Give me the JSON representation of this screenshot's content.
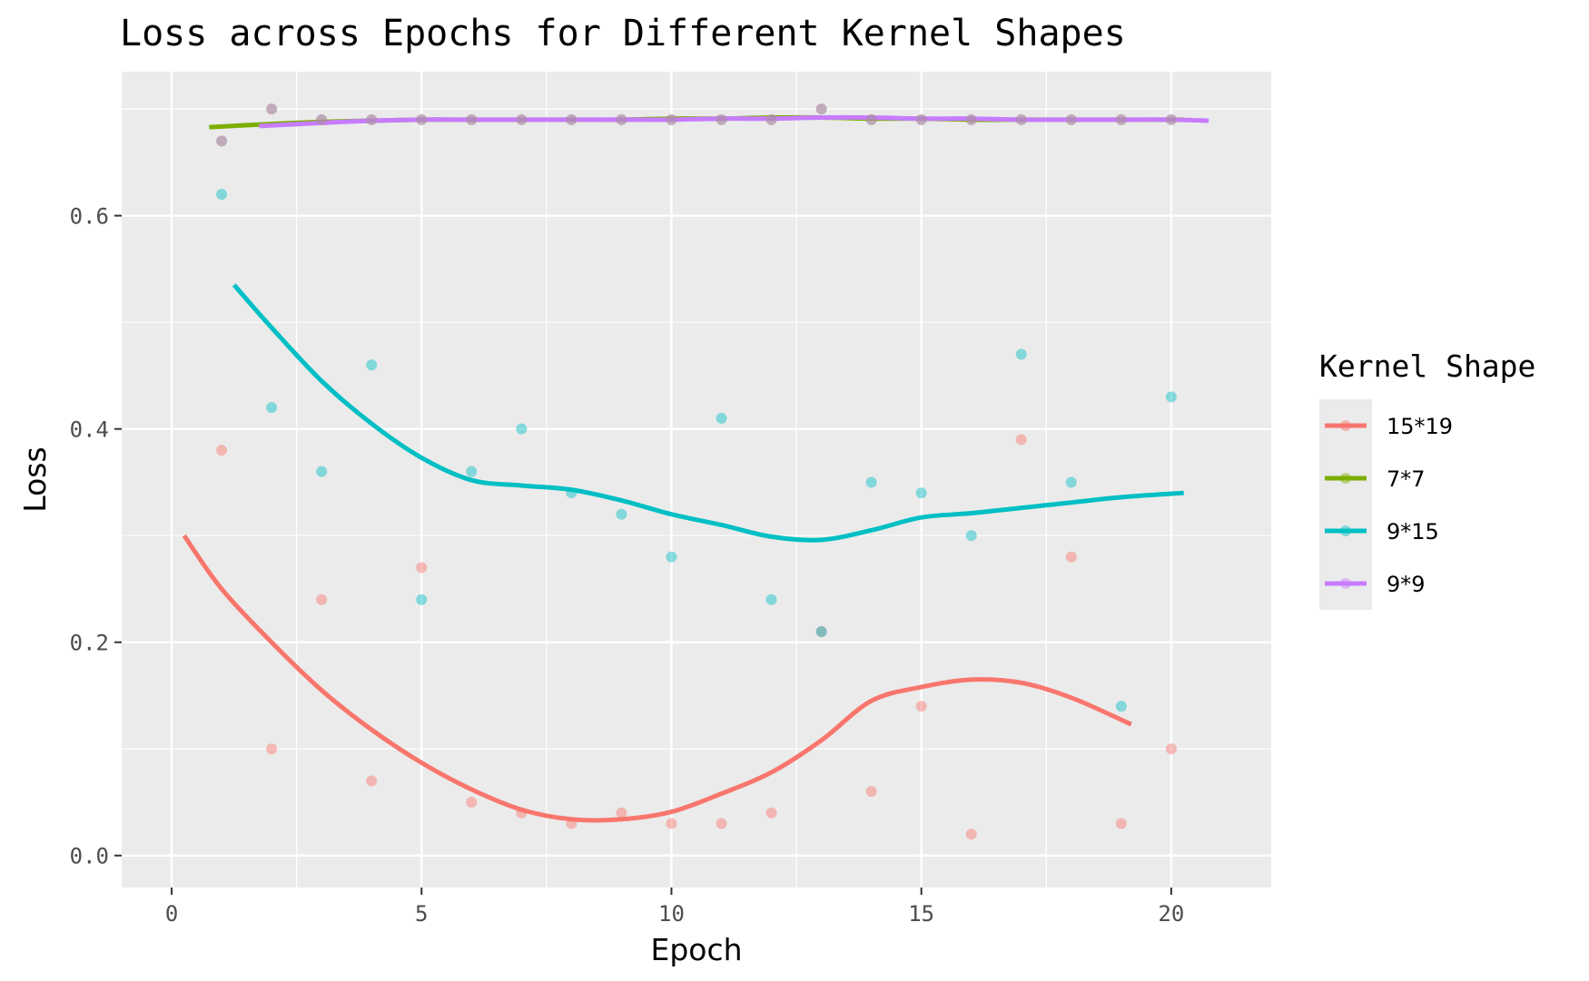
{
  "chart_data": {
    "type": "scatter",
    "title": "Loss across Epochs for Different Kernel Shapes",
    "xlabel": "Epoch",
    "ylabel": "Loss",
    "xlim": [
      -1,
      22
    ],
    "ylim": [
      -0.03,
      0.735
    ],
    "x_ticks": [
      0,
      5,
      10,
      15,
      20
    ],
    "x_tick_labels": [
      "0",
      "5",
      "10",
      "15",
      "20"
    ],
    "y_ticks": [
      0.0,
      0.2,
      0.4,
      0.6
    ],
    "y_tick_labels": [
      "0.0",
      "0.2",
      "0.4",
      "0.6"
    ],
    "grid": true,
    "legend": {
      "title": "Kernel Shape",
      "position": "right"
    },
    "series": [
      {
        "name": "15*19",
        "color": "#F8766D",
        "x": [
          1,
          2,
          3,
          4,
          5,
          6,
          7,
          8,
          9,
          10,
          11,
          12,
          13,
          14,
          15,
          16,
          17,
          18,
          19,
          20
        ],
        "points": [
          0.38,
          0.1,
          0.24,
          0.07,
          0.27,
          0.05,
          0.04,
          0.03,
          0.04,
          0.03,
          0.03,
          0.04,
          0.21,
          0.06,
          0.14,
          0.02,
          0.39,
          0.28,
          0.03,
          0.1
        ],
        "smooth_x": [
          0.25,
          1,
          2,
          3,
          4,
          5,
          6,
          7,
          8,
          9,
          10,
          11,
          12,
          13,
          14,
          15,
          16,
          17,
          18,
          19.2
        ],
        "smooth": [
          0.3,
          0.25,
          0.2,
          0.155,
          0.118,
          0.087,
          0.062,
          0.043,
          0.034,
          0.034,
          0.041,
          0.058,
          0.078,
          0.108,
          0.145,
          0.158,
          0.165,
          0.162,
          0.148,
          0.123
        ]
      },
      {
        "name": "7*7",
        "color": "#7CAE00",
        "x": [
          1,
          2,
          3,
          4,
          5,
          6,
          7,
          8,
          9,
          10,
          11,
          12,
          13,
          14,
          15,
          16,
          17,
          18,
          19,
          20
        ],
        "points": [
          0.67,
          0.7,
          0.69,
          0.69,
          0.69,
          0.69,
          0.69,
          0.69,
          0.69,
          0.69,
          0.69,
          0.69,
          0.7,
          0.69,
          0.69,
          0.69,
          0.69,
          0.69,
          0.69,
          0.69
        ],
        "smooth_x": [
          0.75,
          2,
          3,
          4,
          5,
          6,
          7,
          8,
          9,
          10,
          11,
          12,
          13,
          14,
          15,
          16,
          17,
          18,
          19,
          20.25
        ],
        "smooth": [
          0.683,
          0.686,
          0.688,
          0.689,
          0.69,
          0.69,
          0.69,
          0.69,
          0.69,
          0.691,
          0.691,
          0.692,
          0.692,
          0.691,
          0.691,
          0.69,
          0.69,
          0.69,
          0.69,
          0.69
        ]
      },
      {
        "name": "9*15",
        "color": "#00BFC4",
        "x": [
          1,
          2,
          3,
          4,
          5,
          6,
          7,
          8,
          9,
          10,
          11,
          12,
          13,
          14,
          15,
          16,
          17,
          18,
          19,
          20
        ],
        "points": [
          0.62,
          0.42,
          0.36,
          0.46,
          0.24,
          0.36,
          0.4,
          0.34,
          0.32,
          0.28,
          0.41,
          0.24,
          0.21,
          0.35,
          0.34,
          0.3,
          0.47,
          0.35,
          0.14,
          0.43
        ],
        "smooth_x": [
          1.25,
          2,
          3,
          4,
          5,
          6,
          7,
          8,
          9,
          10,
          11,
          12,
          13,
          14,
          15,
          16,
          17,
          18,
          19,
          20.25
        ],
        "smooth": [
          0.535,
          0.495,
          0.445,
          0.405,
          0.373,
          0.352,
          0.347,
          0.343,
          0.333,
          0.32,
          0.31,
          0.299,
          0.296,
          0.305,
          0.317,
          0.321,
          0.326,
          0.331,
          0.336,
          0.34
        ]
      },
      {
        "name": "9*9",
        "color": "#C77CFF",
        "x": [
          1,
          2,
          3,
          4,
          5,
          6,
          7,
          8,
          9,
          10,
          11,
          12,
          13,
          14,
          15,
          16,
          17,
          18,
          19,
          20
        ],
        "points": [
          0.67,
          0.7,
          0.69,
          0.69,
          0.69,
          0.69,
          0.69,
          0.69,
          0.69,
          0.69,
          0.69,
          0.69,
          0.7,
          0.69,
          0.69,
          0.69,
          0.69,
          0.69,
          0.69,
          0.69
        ],
        "smooth_x": [
          1.75,
          3,
          4,
          5,
          6,
          7,
          8,
          9,
          10,
          11,
          12,
          13,
          14,
          15,
          16,
          17,
          18,
          19,
          20,
          20.75
        ],
        "smooth": [
          0.684,
          0.687,
          0.689,
          0.69,
          0.69,
          0.69,
          0.69,
          0.69,
          0.69,
          0.691,
          0.691,
          0.692,
          0.692,
          0.691,
          0.691,
          0.69,
          0.69,
          0.69,
          0.69,
          0.689
        ]
      }
    ]
  }
}
